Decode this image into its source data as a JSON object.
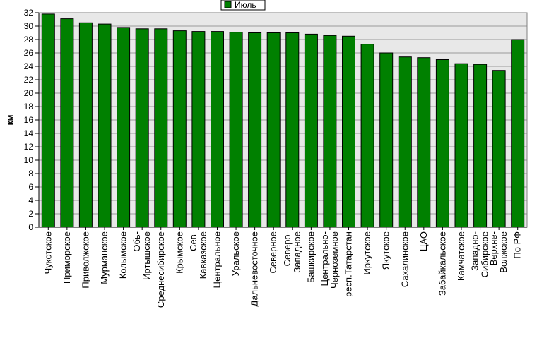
{
  "chart_data": {
    "type": "bar",
    "title": "",
    "xlabel": "",
    "ylabel": "км",
    "ylim": [
      0,
      32
    ],
    "yticks": [
      0,
      2,
      4,
      6,
      8,
      10,
      12,
      14,
      16,
      18,
      20,
      22,
      24,
      26,
      28,
      30,
      32
    ],
    "grid": true,
    "legend_position": "top-center",
    "categories": [
      "Чукотское",
      "Приморское",
      "Приволжское",
      "Мурманское",
      "Колымское",
      "Обь-Иртышское",
      "Среднесибирское",
      "Крымское",
      "Сев-Кавказское",
      "Центральное",
      "Уральское",
      "Дальневосточное",
      "Северное",
      "Северо-Западное",
      "Башкирское",
      "Центрально-Черноземное",
      "респ.Татарстан",
      "Иркутское",
      "Якутское",
      "Сахалинское",
      "ЦАО",
      "Забайкальское",
      "Камчатское",
      "Западно-Сибирское",
      "Верхне-Волжское",
      "По РФ"
    ],
    "category_lines": [
      [
        "Чукотское"
      ],
      [
        "Приморское"
      ],
      [
        "Приволжское"
      ],
      [
        "Мурманское"
      ],
      [
        "Колымское"
      ],
      [
        "Обь-",
        "Иртышское"
      ],
      [
        "Среднесибирское"
      ],
      [
        "Крымское"
      ],
      [
        "Сев-",
        "Кавказское"
      ],
      [
        "Центральное"
      ],
      [
        "Уральское"
      ],
      [
        "Дальневосточное"
      ],
      [
        "Северное"
      ],
      [
        "Северо-",
        "Западное"
      ],
      [
        "Башкирское"
      ],
      [
        "Центрально-",
        "Черноземное"
      ],
      [
        "респ.Татарстан"
      ],
      [
        "Иркутское"
      ],
      [
        "Якутское"
      ],
      [
        "Сахалинское"
      ],
      [
        "ЦАО"
      ],
      [
        "Забайкальское"
      ],
      [
        "Камчатское"
      ],
      [
        "Западно-",
        "Сибирское"
      ],
      [
        "Верхне-",
        "Волжское"
      ],
      [
        "По РФ"
      ]
    ],
    "series": [
      {
        "name": "Июль",
        "color": "#008000",
        "values": [
          31.8,
          31.1,
          30.5,
          30.3,
          29.8,
          29.6,
          29.6,
          29.3,
          29.2,
          29.2,
          29.1,
          29.0,
          29.0,
          29.0,
          28.8,
          28.6,
          28.5,
          27.3,
          26.0,
          25.4,
          25.3,
          25.0,
          24.4,
          24.3,
          23.4,
          28.0
        ]
      }
    ]
  }
}
